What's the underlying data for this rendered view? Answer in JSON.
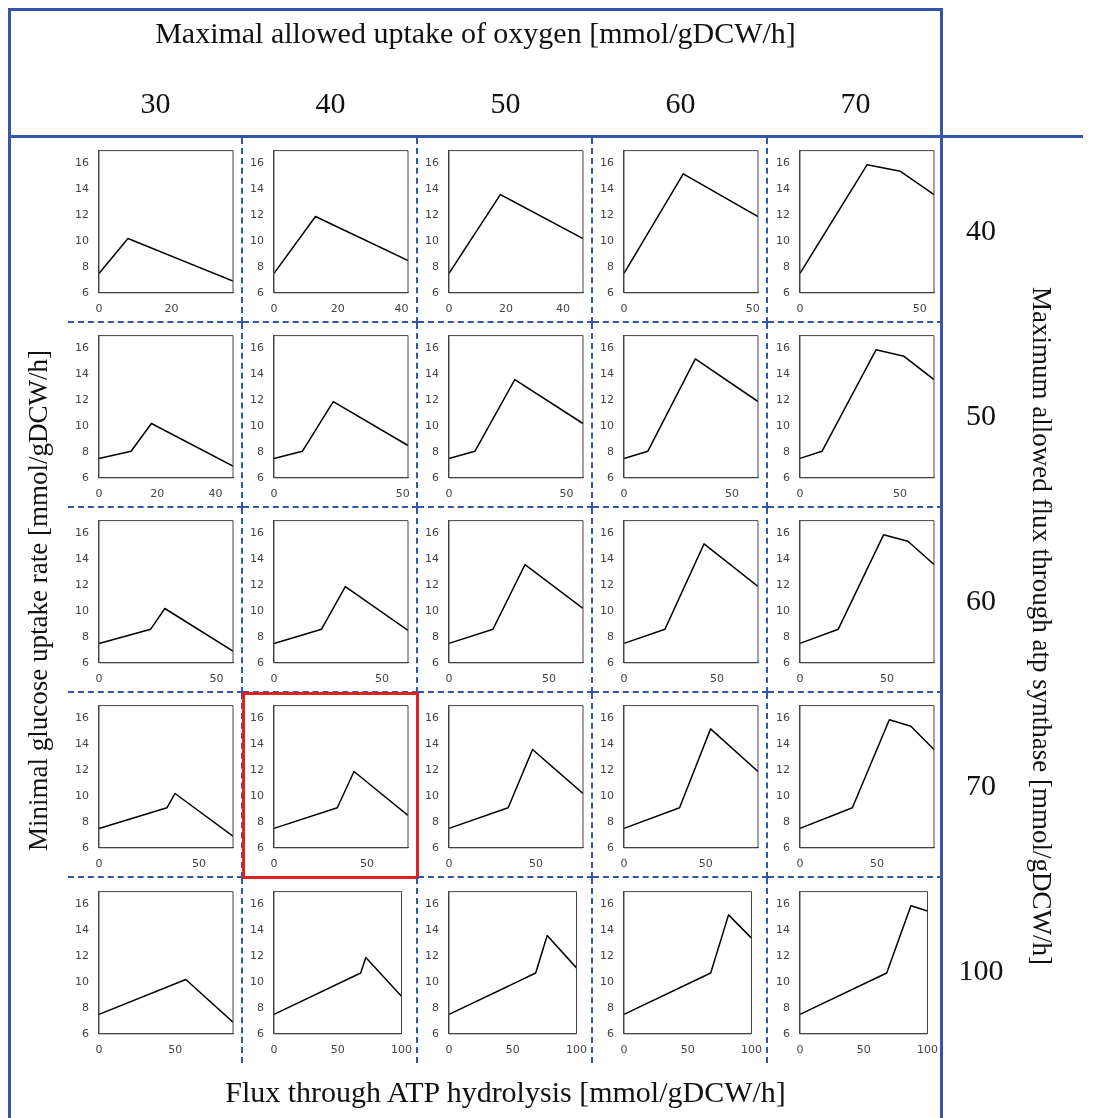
{
  "chart_data": [
    {
      "type": "other",
      "title": "Maximal allowed uptake of oxygen [mmol/gDCW/h]",
      "xlabel": "Flux through ATP hydrolysis [mmol/gDCW/h]",
      "ylabel": "Minimal glucose uptake rate [mmol/gDCW/h]",
      "y2label": "Maximum allowed flux through atp synthase  [mmol/gDCW/h]"
    },
    {
      "type": "line",
      "title": "30",
      "x": [
        0,
        8,
        37
      ],
      "values": [
        7.5,
        10.2,
        6.9
      ],
      "color": "#000000",
      "xlim": [
        0,
        37
      ],
      "xticks": [
        0,
        20
      ],
      "ylim": [
        6,
        17
      ],
      "yticks": [
        6,
        8,
        10,
        12,
        14,
        16
      ]
    },
    {
      "type": "line",
      "title": "40",
      "x": [
        0,
        13,
        42
      ],
      "values": [
        7.5,
        11.9,
        8.5
      ],
      "color": "#000000",
      "xlim": [
        0,
        42
      ],
      "xticks": [
        0,
        20,
        40
      ],
      "ylim": [
        6,
        17
      ],
      "yticks": [
        6,
        8,
        10,
        12,
        14,
        16
      ]
    },
    {
      "type": "line",
      "title": "50",
      "x": [
        0,
        18,
        47
      ],
      "values": [
        7.5,
        13.6,
        10.2
      ],
      "color": "#000000",
      "xlim": [
        0,
        47
      ],
      "xticks": [
        0,
        20,
        40
      ],
      "ylim": [
        6,
        17
      ],
      "yticks": [
        6,
        8,
        10,
        12,
        14,
        16
      ]
    },
    {
      "type": "line",
      "title": "60",
      "x": [
        0,
        23,
        52
      ],
      "values": [
        7.5,
        15.2,
        11.9
      ],
      "color": "#000000",
      "xlim": [
        0,
        52
      ],
      "xticks": [
        0,
        50
      ],
      "ylim": [
        6,
        17
      ],
      "yticks": [
        6,
        8,
        10,
        12,
        14,
        16
      ]
    },
    {
      "type": "line",
      "title": "70",
      "y2label": "40",
      "x": [
        0,
        28,
        42,
        56
      ],
      "values": [
        7.5,
        15.9,
        15.4,
        13.6
      ],
      "color": "#000000",
      "xlim": [
        0,
        56
      ],
      "xticks": [
        0,
        50
      ],
      "ylim": [
        6,
        17
      ],
      "yticks": [
        6,
        8,
        10,
        12,
        14,
        16
      ]
    },
    {
      "type": "line",
      "x": [
        0,
        11,
        18,
        46
      ],
      "values": [
        7.5,
        8.05,
        10.2,
        6.9
      ],
      "color": "#000000",
      "xlim": [
        0,
        46
      ],
      "xticks": [
        0,
        20,
        40
      ],
      "ylim": [
        6,
        17
      ],
      "yticks": [
        6,
        8,
        10,
        12,
        14,
        16
      ]
    },
    {
      "type": "line",
      "x": [
        0,
        11,
        23,
        52
      ],
      "values": [
        7.5,
        8.05,
        11.9,
        8.5
      ],
      "color": "#000000",
      "xlim": [
        0,
        52
      ],
      "xticks": [
        0,
        50
      ],
      "ylim": [
        6,
        17
      ],
      "yticks": [
        6,
        8,
        10,
        12,
        14,
        16
      ]
    },
    {
      "type": "line",
      "x": [
        0,
        11,
        28,
        57
      ],
      "values": [
        7.5,
        8.05,
        13.6,
        10.2
      ],
      "color": "#000000",
      "xlim": [
        0,
        57
      ],
      "xticks": [
        0,
        50
      ],
      "ylim": [
        6,
        17
      ],
      "yticks": [
        6,
        8,
        10,
        12,
        14,
        16
      ]
    },
    {
      "type": "line",
      "x": [
        0,
        11,
        33,
        62
      ],
      "values": [
        7.5,
        8.05,
        15.2,
        11.9
      ],
      "color": "#000000",
      "xlim": [
        0,
        62
      ],
      "xticks": [
        0,
        50
      ],
      "ylim": [
        6,
        17
      ],
      "yticks": [
        6,
        8,
        10,
        12,
        14,
        16
      ]
    },
    {
      "type": "line",
      "y2label": "50",
      "x": [
        0,
        11,
        38,
        52,
        67
      ],
      "values": [
        7.5,
        8.05,
        15.9,
        15.4,
        13.6
      ],
      "color": "#000000",
      "xlim": [
        0,
        67
      ],
      "xticks": [
        0,
        50
      ],
      "ylim": [
        6,
        17
      ],
      "yticks": [
        6,
        8,
        10,
        12,
        14,
        16
      ]
    },
    {
      "type": "line",
      "x": [
        0,
        22,
        28,
        57
      ],
      "values": [
        7.5,
        8.6,
        10.2,
        6.9
      ],
      "color": "#000000",
      "xlim": [
        0,
        57
      ],
      "xticks": [
        0,
        50
      ],
      "ylim": [
        6,
        17
      ],
      "yticks": [
        6,
        8,
        10,
        12,
        14,
        16
      ]
    },
    {
      "type": "line",
      "x": [
        0,
        22,
        33,
        62
      ],
      "values": [
        7.5,
        8.6,
        11.9,
        8.5
      ],
      "color": "#000000",
      "xlim": [
        0,
        62
      ],
      "xticks": [
        0,
        50
      ],
      "ylim": [
        6,
        17
      ],
      "yticks": [
        6,
        8,
        10,
        12,
        14,
        16
      ]
    },
    {
      "type": "line",
      "x": [
        0,
        22,
        38,
        67
      ],
      "values": [
        7.5,
        8.6,
        13.6,
        10.2
      ],
      "color": "#000000",
      "xlim": [
        0,
        67
      ],
      "xticks": [
        0,
        50
      ],
      "ylim": [
        6,
        17
      ],
      "yticks": [
        6,
        8,
        10,
        12,
        14,
        16
      ]
    },
    {
      "type": "line",
      "x": [
        0,
        22,
        43,
        72
      ],
      "values": [
        7.5,
        8.6,
        15.2,
        11.9
      ],
      "color": "#000000",
      "xlim": [
        0,
        72
      ],
      "xticks": [
        0,
        50
      ],
      "ylim": [
        6,
        17
      ],
      "yticks": [
        6,
        8,
        10,
        12,
        14,
        16
      ]
    },
    {
      "type": "line",
      "y2label": "60",
      "x": [
        0,
        22,
        48,
        62,
        77
      ],
      "values": [
        7.5,
        8.6,
        15.9,
        15.4,
        13.6
      ],
      "color": "#000000",
      "xlim": [
        0,
        77
      ],
      "xticks": [
        0,
        50
      ],
      "ylim": [
        6,
        17
      ],
      "yticks": [
        6,
        8,
        10,
        12,
        14,
        16
      ]
    },
    {
      "type": "line",
      "x": [
        0,
        34,
        38,
        67
      ],
      "values": [
        7.5,
        9.1,
        10.2,
        6.9
      ],
      "color": "#000000",
      "xlim": [
        0,
        67
      ],
      "xticks": [
        0,
        50
      ],
      "ylim": [
        6,
        17
      ],
      "yticks": [
        6,
        8,
        10,
        12,
        14,
        16
      ]
    },
    {
      "type": "line",
      "x": [
        0,
        34,
        43,
        72
      ],
      "values": [
        7.5,
        9.1,
        11.9,
        8.5
      ],
      "color": "#000000",
      "xlim": [
        0,
        72
      ],
      "xticks": [
        0,
        50
      ],
      "ylim": [
        6,
        17
      ],
      "yticks": [
        6,
        8,
        10,
        12,
        14,
        16
      ]
    },
    {
      "type": "line",
      "x": [
        0,
        34,
        48,
        77
      ],
      "values": [
        7.5,
        9.1,
        13.6,
        10.2
      ],
      "color": "#000000",
      "xlim": [
        0,
        77
      ],
      "xticks": [
        0,
        50
      ],
      "ylim": [
        6,
        17
      ],
      "yticks": [
        6,
        8,
        10,
        12,
        14,
        16
      ]
    },
    {
      "type": "line",
      "x": [
        0,
        34,
        53,
        82
      ],
      "values": [
        7.5,
        9.1,
        15.2,
        11.9
      ],
      "color": "#000000",
      "xlim": [
        0,
        82
      ],
      "xticks": [
        0,
        50
      ],
      "ylim": [
        6,
        17
      ],
      "yticks": [
        6,
        8,
        10,
        12,
        14,
        16
      ]
    },
    {
      "type": "line",
      "y2label": "70",
      "x": [
        0,
        34,
        58,
        72,
        87
      ],
      "values": [
        7.5,
        9.1,
        15.9,
        15.4,
        13.6
      ],
      "color": "#000000",
      "xlim": [
        0,
        87
      ],
      "xticks": [
        0,
        50
      ],
      "ylim": [
        6,
        17
      ],
      "yticks": [
        6,
        8,
        10,
        12,
        14,
        16
      ]
    },
    {
      "type": "line",
      "x": [
        0,
        57,
        88
      ],
      "values": [
        7.5,
        10.2,
        6.9
      ],
      "color": "#000000",
      "xlim": [
        0,
        88
      ],
      "xticks": [
        0,
        50
      ],
      "ylim": [
        6,
        17
      ],
      "yticks": [
        6,
        8,
        10,
        12,
        14,
        16
      ]
    },
    {
      "type": "line",
      "x": [
        0,
        68,
        72,
        100
      ],
      "values": [
        7.5,
        10.7,
        11.9,
        8.9
      ],
      "color": "#000000",
      "xlim": [
        0,
        100
      ],
      "xticks": [
        0,
        50,
        100
      ],
      "ylim": [
        6,
        17
      ],
      "yticks": [
        6,
        8,
        10,
        12,
        14,
        16
      ]
    },
    {
      "type": "line",
      "x": [
        0,
        68,
        77,
        100
      ],
      "values": [
        7.5,
        10.7,
        13.6,
        11.1
      ],
      "color": "#000000",
      "xlim": [
        0,
        100
      ],
      "xticks": [
        0,
        50,
        100
      ],
      "ylim": [
        6,
        17
      ],
      "yticks": [
        6,
        8,
        10,
        12,
        14,
        16
      ]
    },
    {
      "type": "line",
      "x": [
        0,
        68,
        82,
        100
      ],
      "values": [
        7.5,
        10.7,
        15.2,
        13.4
      ],
      "color": "#000000",
      "xlim": [
        0,
        100
      ],
      "xticks": [
        0,
        50,
        100
      ],
      "ylim": [
        6,
        17
      ],
      "yticks": [
        6,
        8,
        10,
        12,
        14,
        16
      ]
    },
    {
      "type": "line",
      "y2label": "100",
      "x": [
        0,
        68,
        87,
        100
      ],
      "values": [
        7.5,
        10.7,
        15.9,
        15.5
      ],
      "color": "#000000",
      "xlim": [
        0,
        100
      ],
      "xticks": [
        0,
        50,
        100
      ],
      "ylim": [
        6,
        17
      ],
      "yticks": [
        6,
        8,
        10,
        12,
        14,
        16
      ]
    }
  ]
}
